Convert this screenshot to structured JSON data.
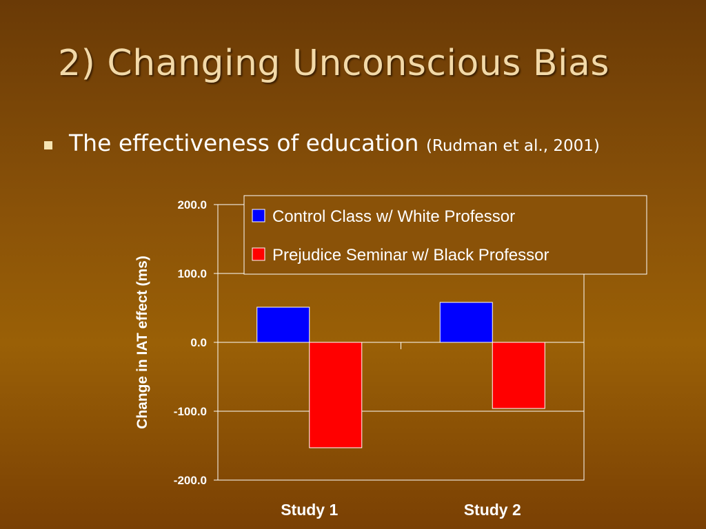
{
  "slide": {
    "title": "2) Changing Unconscious Bias",
    "bullet": "The effectiveness of education",
    "citation": "(Rudman et al., 2001)"
  },
  "chart_data": {
    "type": "bar",
    "title": "",
    "xlabel": "",
    "ylabel": "Change in IAT effect (ms)",
    "categories": [
      "Study 1",
      "Study 2"
    ],
    "series": [
      {
        "name": "Control Class w/ White Professor",
        "color": "#0000ff",
        "values": [
          51,
          58
        ]
      },
      {
        "name": "Prejudice Seminar w/ Black Professor",
        "color": "#ff0000",
        "values": [
          -153,
          -96
        ]
      }
    ],
    "ylim": [
      -200,
      200
    ],
    "yticks": [
      "200.0",
      "100.0",
      "0.0",
      "-100.0",
      "-200.0"
    ],
    "ytick_values": [
      200,
      100,
      0,
      -100,
      -200
    ],
    "grid": true,
    "legend_position": "top-right"
  }
}
